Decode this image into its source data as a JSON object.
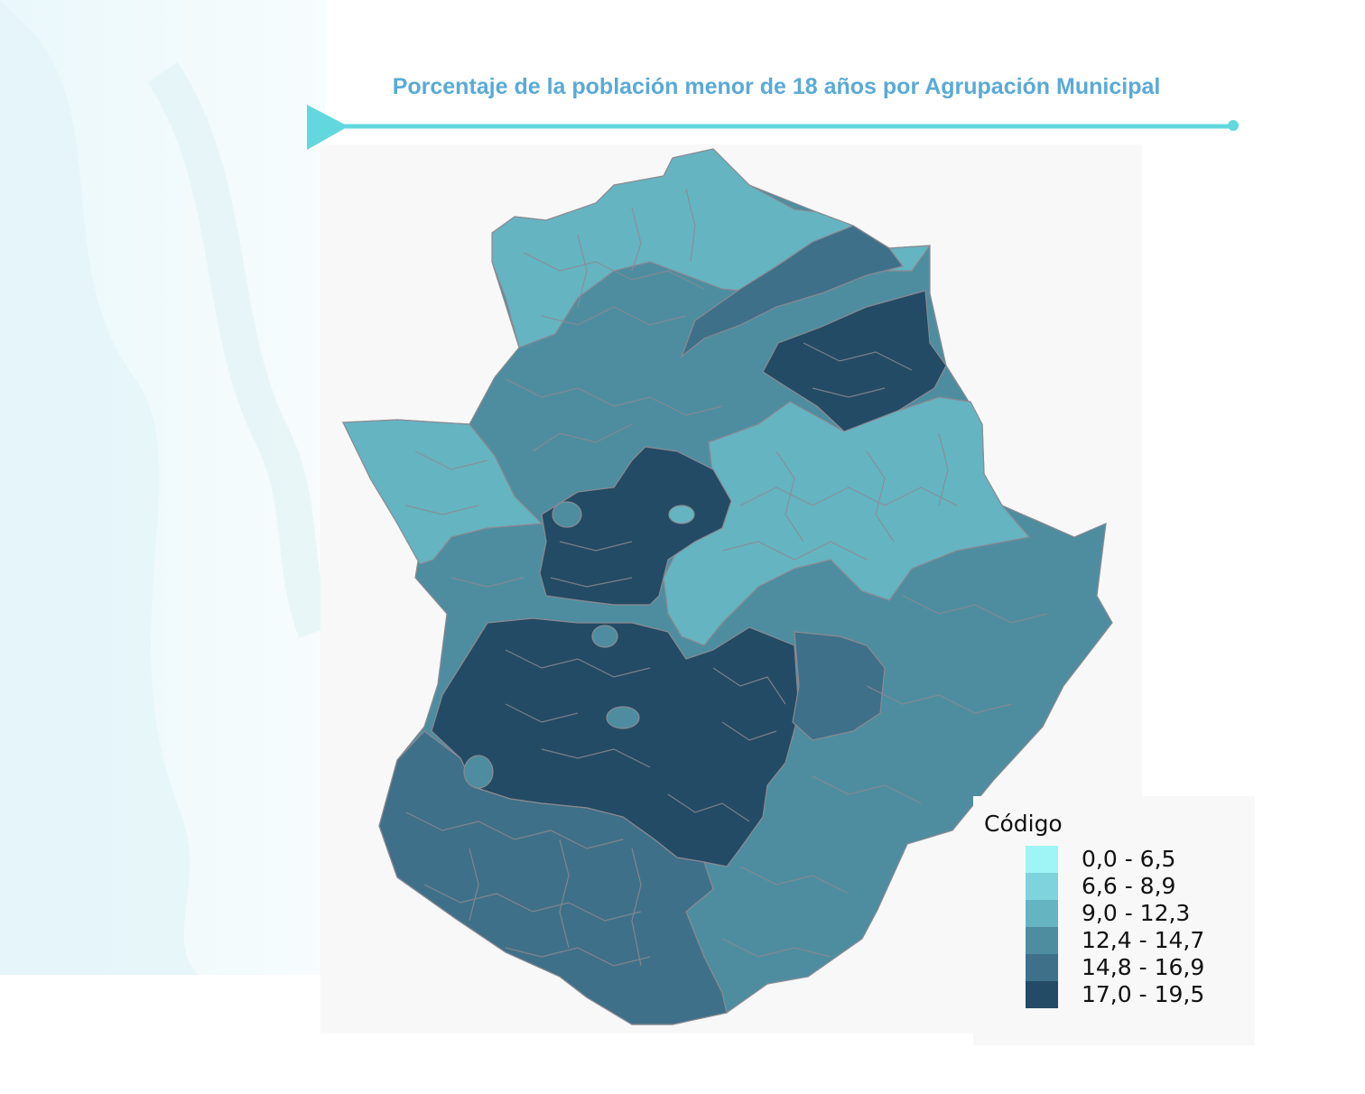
{
  "title": "Porcentaje de la población menor de 18 años por Agrupación Municipal",
  "colors": {
    "title": "#5aaad6",
    "accent_line": "#62d8de",
    "border": "#8a8a92",
    "panel": "#f7f8f7"
  },
  "legend": {
    "title": "Código",
    "classes": [
      {
        "label": "0,0 - 6,5",
        "color": "#9ff4f6"
      },
      {
        "label": "6,6 - 8,9",
        "color": "#7ed3dd"
      },
      {
        "label": "9,0 - 12,3",
        "color": "#65b4c2"
      },
      {
        "label": "12,4 - 14,7",
        "color": "#4e8da0"
      },
      {
        "label": "14,8 - 16,9",
        "color": "#3f7089"
      },
      {
        "label": "17,0 - 19,5",
        "color": "#234b65"
      }
    ]
  }
}
